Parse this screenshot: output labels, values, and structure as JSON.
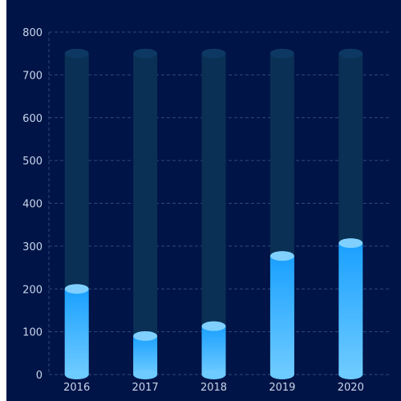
{
  "colors": {
    "panel_background": "#001447",
    "grid_line": "#2f4a7a",
    "track": "#0a3055",
    "track_top": "#0d3863",
    "bar_top_color": "#1aa0ff",
    "bar_bottom_color": "#6ecbff",
    "bar_cap": "#7fd0ff",
    "tick_text": "#c9d6ea"
  },
  "chart_data": {
    "type": "bar",
    "categories": [
      "2016",
      "2017",
      "2018",
      "2019",
      "2020"
    ],
    "values": [
      200,
      90,
      113,
      277,
      307
    ],
    "background_values": [
      750,
      750,
      750,
      750,
      750
    ],
    "yticks": [
      0,
      100,
      200,
      300,
      400,
      500,
      600,
      700,
      800
    ],
    "ylim": [
      0,
      800
    ],
    "grid": true,
    "title": "",
    "xlabel": "",
    "ylabel": ""
  }
}
